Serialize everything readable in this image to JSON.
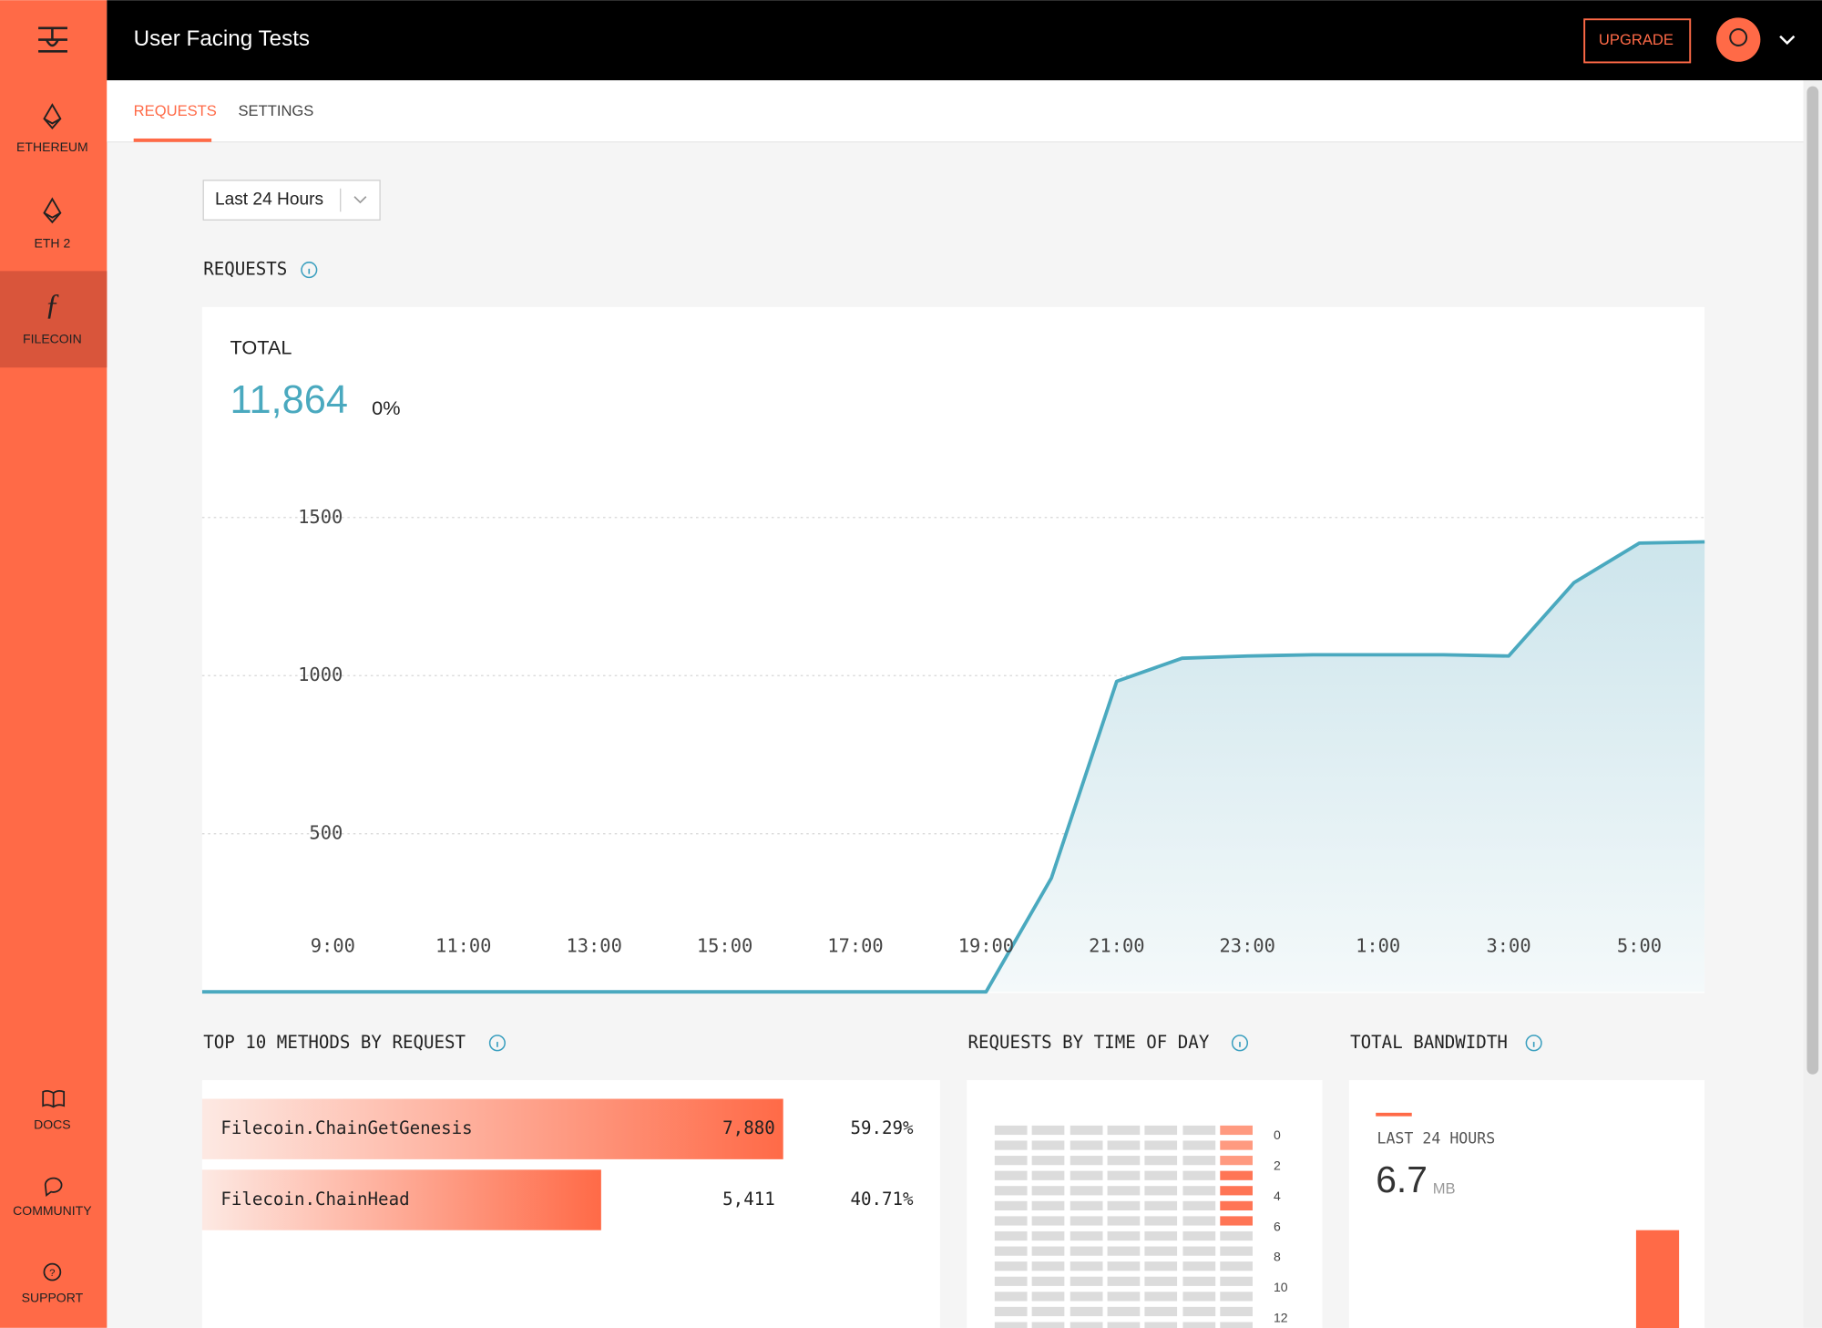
{
  "app": {
    "title": "User Facing Tests",
    "upgrade": "UPGRADE"
  },
  "sidebar": {
    "items": [
      "ETHEREUM",
      "ETH 2",
      "FILECOIN"
    ],
    "bottom": [
      "DOCS",
      "COMMUNITY",
      "SUPPORT"
    ]
  },
  "tabs": [
    "REQUESTS",
    "SETTINGS"
  ],
  "range_select": "Last 24 Hours",
  "requests_heading": "REQUESTS",
  "requests_chart": {
    "type": "area",
    "label": "TOTAL",
    "total": "11,864",
    "change": "0%",
    "categories": [
      null,
      null,
      "9:00",
      null,
      "11:00",
      null,
      "13:00",
      null,
      "15:00",
      null,
      "17:00",
      null,
      "19:00",
      null,
      "21:00",
      null,
      "23:00",
      null,
      "1:00",
      null,
      "3:00",
      null,
      "5:00",
      null
    ],
    "values": [
      0,
      0,
      0,
      0,
      0,
      0,
      0,
      0,
      0,
      0,
      0,
      0,
      0,
      360,
      982,
      1055,
      1062,
      1066,
      1066,
      1066,
      1062,
      1294,
      1419,
      1423
    ],
    "color": "#4aa9bf",
    "ylim": [
      0,
      1500
    ],
    "yticks": [
      500,
      1000,
      1500
    ],
    "grid": true
  },
  "methods": {
    "heading": "TOP 10 METHODS BY REQUEST",
    "color": "#ff6a47",
    "rows": [
      {
        "name": "Filecoin.ChainGetGenesis",
        "value": 7880,
        "value_label": "7,880",
        "share": "59.29%"
      },
      {
        "name": "Filecoin.ChainHead",
        "value": 5411,
        "value_label": "5,411",
        "share": "40.71%"
      }
    ]
  },
  "time_of_day": {
    "heading": "REQUESTS BY TIME OF DAY",
    "row_labels": [
      "0",
      "2",
      "4",
      "6",
      "8",
      "10",
      "12"
    ]
  },
  "bandwidth": {
    "heading": "TOTAL BANDWIDTH",
    "period": "LAST 24 HOURS",
    "amount": "6.7",
    "unit": "MB"
  }
}
